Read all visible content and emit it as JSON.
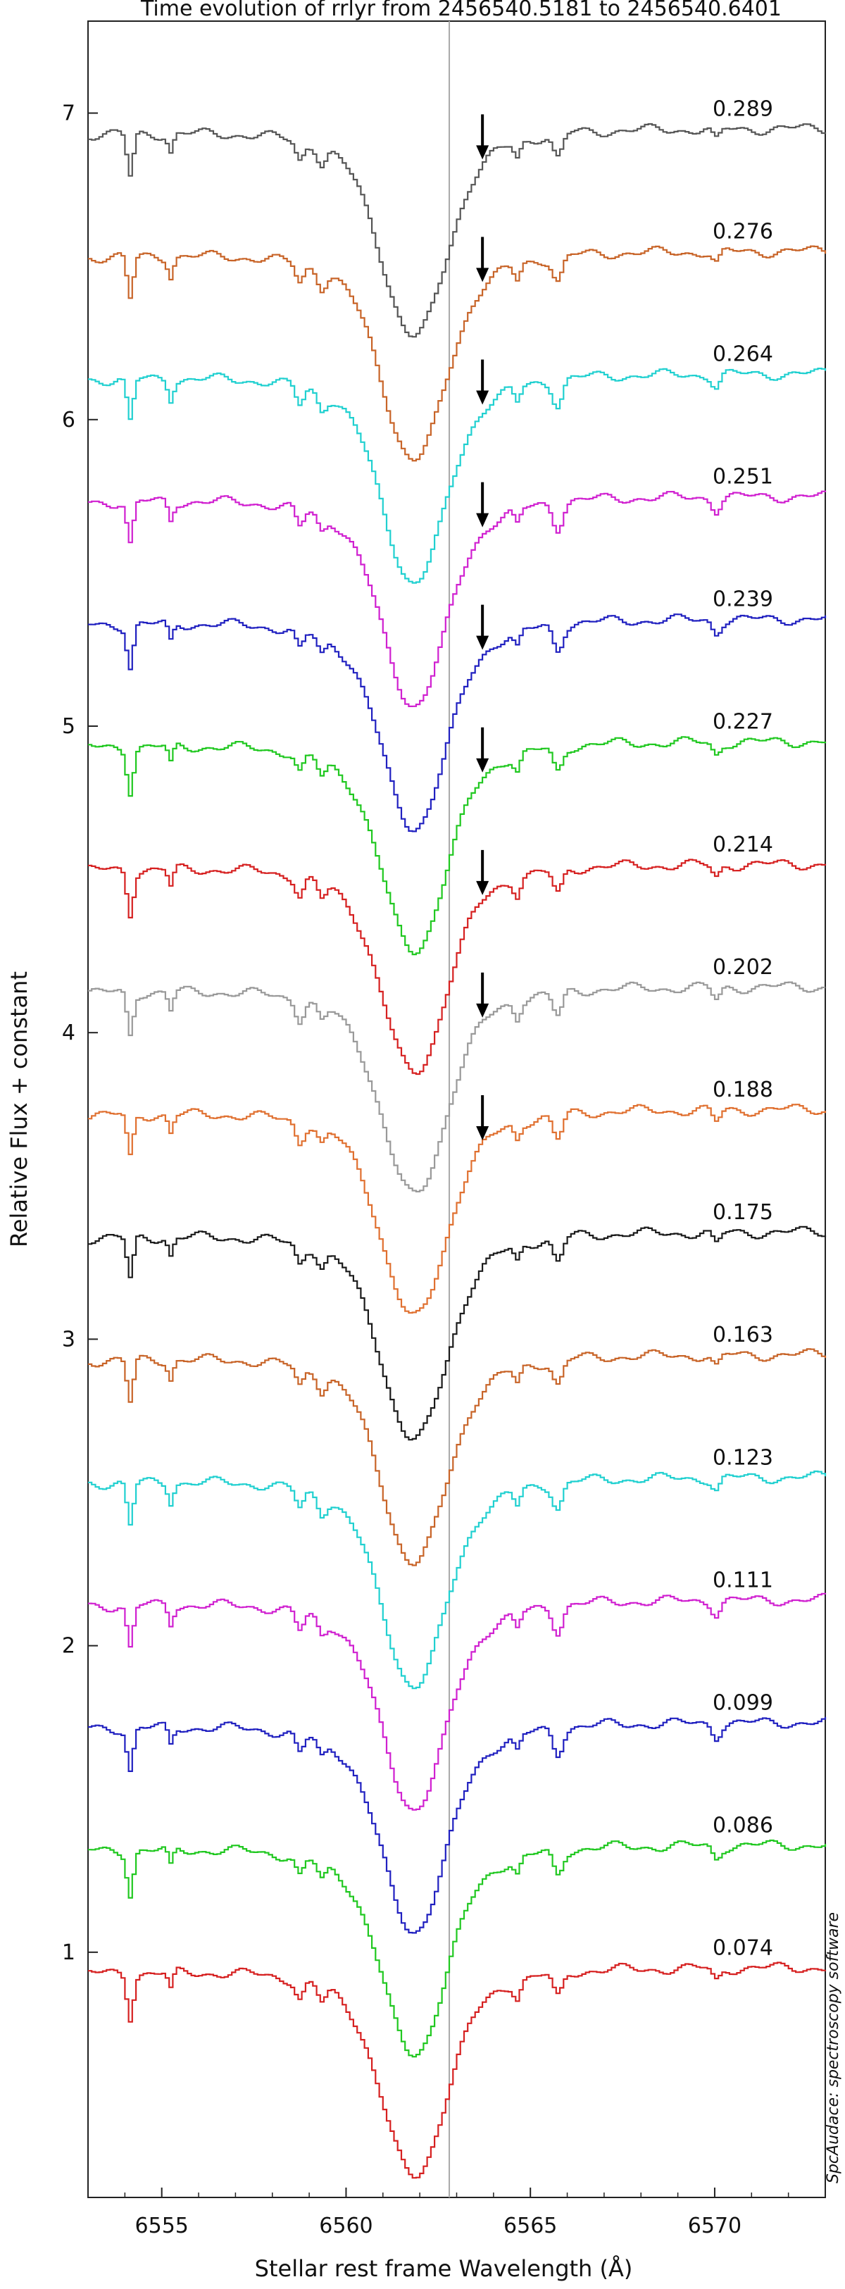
{
  "chart_data": {
    "type": "line",
    "title": "Time evolution of rrlyr from 2456540.5181 to 2456540.6401",
    "xlabel": "Stellar rest frame Wavelength (Å)",
    "ylabel": "Relative Flux + constant",
    "xlim": [
      6553,
      6573
    ],
    "ylim": [
      0.2,
      7.3
    ],
    "xticks": [
      6555,
      6560,
      6565,
      6570
    ],
    "yticks": [
      1,
      2,
      3,
      4,
      5,
      6,
      7
    ],
    "reference_line_x": 6562.8,
    "credit": "SpcAudace: spectroscopy software",
    "series": [
      {
        "phase": "0.074",
        "offset": 0.0,
        "color": "#d62020",
        "arrow": false
      },
      {
        "phase": "0.086",
        "offset": 0.4,
        "color": "#20c820",
        "arrow": false
      },
      {
        "phase": "0.099",
        "offset": 0.8,
        "color": "#2020c0",
        "arrow": false
      },
      {
        "phase": "0.111",
        "offset": 1.2,
        "color": "#d020d0",
        "arrow": false
      },
      {
        "phase": "0.123",
        "offset": 1.6,
        "color": "#20d0d0",
        "arrow": false
      },
      {
        "phase": "0.163",
        "offset": 2.0,
        "color": "#c86428",
        "arrow": false
      },
      {
        "phase": "0.175",
        "offset": 2.4,
        "color": "#1a1a1a",
        "arrow": false
      },
      {
        "phase": "0.188",
        "offset": 2.8,
        "color": "#e07030",
        "arrow": true
      },
      {
        "phase": "0.202",
        "offset": 3.2,
        "color": "#999999",
        "arrow": true
      },
      {
        "phase": "0.214",
        "offset": 3.6,
        "color": "#d62020",
        "arrow": true
      },
      {
        "phase": "0.227",
        "offset": 4.0,
        "color": "#20c820",
        "arrow": true
      },
      {
        "phase": "0.239",
        "offset": 4.4,
        "color": "#2020c0",
        "arrow": true
      },
      {
        "phase": "0.251",
        "offset": 4.8,
        "color": "#d020d0",
        "arrow": true
      },
      {
        "phase": "0.264",
        "offset": 5.2,
        "color": "#20d0d0",
        "arrow": true
      },
      {
        "phase": "0.276",
        "offset": 5.6,
        "color": "#c86428",
        "arrow": true
      },
      {
        "phase": "0.289",
        "offset": 6.0,
        "color": "#555555",
        "arrow": true
      }
    ]
  }
}
